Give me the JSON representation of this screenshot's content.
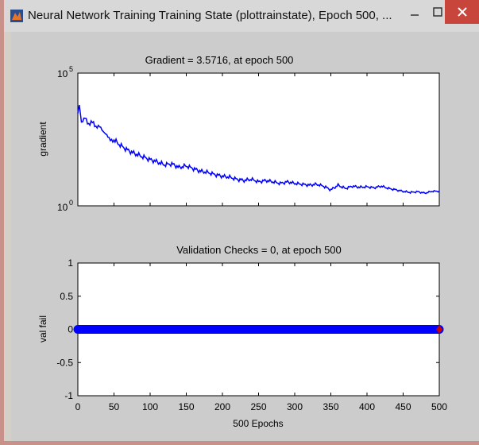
{
  "window": {
    "title": "Neural Network Training Training State (plottrainstate), Epoch 500, ...",
    "icon": "matlab-icon",
    "controls": {
      "minimize": "–",
      "maximize": "□",
      "close": "✕"
    }
  },
  "chart_data": [
    {
      "type": "line",
      "title": "Gradient = 3.5716, at epoch 500",
      "xlabel": "",
      "ylabel": "gradient",
      "yscale": "log",
      "ylim": [
        1,
        100000
      ],
      "xlim": [
        0,
        500
      ],
      "yticks": [
        "10",
        "10"
      ],
      "ytick_exponents": [
        "5",
        "0"
      ],
      "color": "#0000ff",
      "series": [
        {
          "x": [
            0,
            2,
            5,
            10,
            15,
            20,
            25,
            30,
            35,
            40,
            45,
            50,
            60,
            70,
            80,
            90,
            100,
            110,
            120,
            130,
            140,
            150,
            160,
            170,
            180,
            190,
            200,
            210,
            220,
            230,
            240,
            250,
            260,
            270,
            280,
            290,
            300,
            310,
            320,
            330,
            340,
            350,
            360,
            370,
            380,
            390,
            400,
            410,
            420,
            430,
            440,
            450,
            460,
            470,
            480,
            490,
            500
          ],
          "values": [
            3000,
            6000,
            1500,
            2500,
            1200,
            1500,
            800,
            900,
            600,
            500,
            350,
            300,
            180,
            120,
            90,
            70,
            55,
            45,
            35,
            38,
            28,
            32,
            25,
            20,
            18,
            15,
            13,
            12,
            10,
            9,
            10,
            8,
            9,
            8,
            7,
            8,
            7,
            6.5,
            6,
            6.5,
            5.5,
            4,
            6,
            4.5,
            5.5,
            5,
            5.2,
            4.8,
            5.5,
            4.5,
            4,
            3.5,
            3.2,
            3.4,
            3.0,
            3.5,
            3.5716
          ]
        }
      ]
    },
    {
      "type": "scatter",
      "title": "Validation Checks = 0, at epoch 500",
      "xlabel": "500 Epochs",
      "ylabel": "val fail",
      "xlim": [
        0,
        500
      ],
      "ylim": [
        -1,
        1
      ],
      "xticks": [
        0,
        50,
        100,
        150,
        200,
        250,
        300,
        350,
        400,
        450,
        500
      ],
      "yticks": [
        1,
        0.5,
        0,
        -0.5,
        -1
      ],
      "color": "#0000ff",
      "highlight_color": "#cc0000",
      "series": [
        {
          "x_start": 0,
          "x_end": 500,
          "value": 0,
          "final_point": [
            500,
            0
          ]
        }
      ]
    }
  ]
}
